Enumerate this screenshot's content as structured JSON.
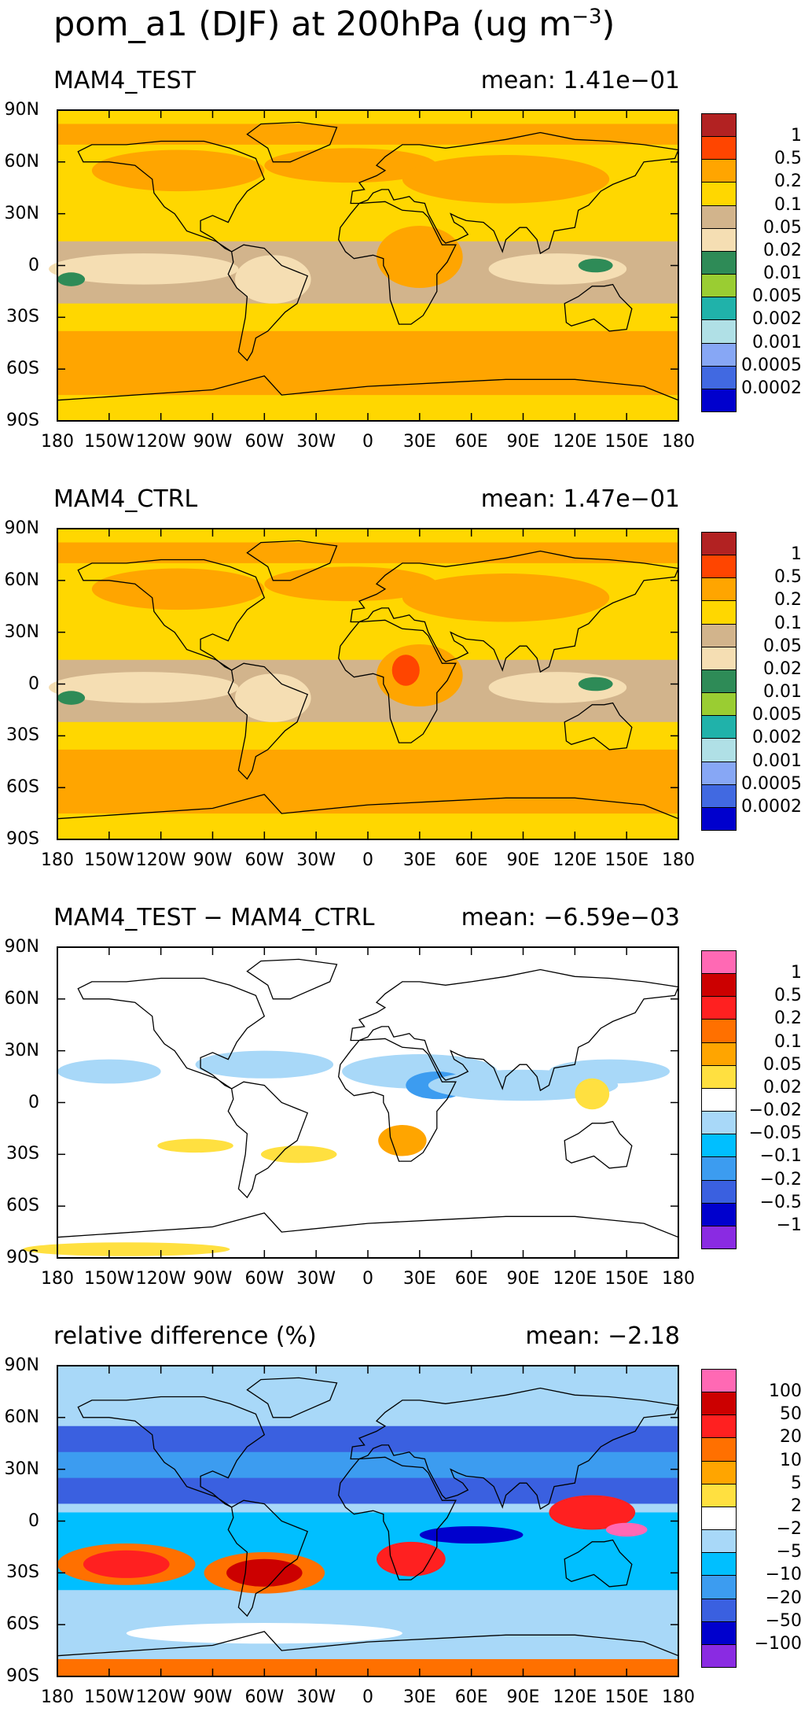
{
  "figure": {
    "title": "pom_a1 (DJF) at 200hPa (ug m",
    "title_superscript": "−3",
    "title_close": ")"
  },
  "axes": {
    "lat_labels": [
      "90N",
      "60N",
      "30N",
      "0",
      "30S",
      "60S",
      "90S"
    ],
    "lon_labels": [
      "180",
      "150W",
      "120W",
      "90W",
      "60W",
      "30W",
      "0",
      "30E",
      "60E",
      "90E",
      "120E",
      "150E",
      "180"
    ]
  },
  "panels": [
    {
      "name": "MAM4_TEST",
      "mean": "mean: 1.41e−01",
      "colorbar": {
        "colors": [
          "#b22222",
          "#ff4500",
          "#ffa500",
          "#ffd700",
          "#d2b48c",
          "#f5deb3",
          "#2e8b57",
          "#9acd32",
          "#20b2aa",
          "#b0e0e6",
          "#87a7f5",
          "#4169e1",
          "#0000cd"
        ],
        "labels": [
          "1",
          "0.5",
          "0.2",
          "0.1",
          "0.05",
          "0.02",
          "0.01",
          "0.005",
          "0.002",
          "0.001",
          "0.0005",
          "0.0002"
        ]
      }
    },
    {
      "name": "MAM4_CTRL",
      "mean": "mean: 1.47e−01",
      "colorbar": {
        "colors": [
          "#b22222",
          "#ff4500",
          "#ffa500",
          "#ffd700",
          "#d2b48c",
          "#f5deb3",
          "#2e8b57",
          "#9acd32",
          "#20b2aa",
          "#b0e0e6",
          "#87a7f5",
          "#4169e1",
          "#0000cd"
        ],
        "labels": [
          "1",
          "0.5",
          "0.2",
          "0.1",
          "0.05",
          "0.02",
          "0.01",
          "0.005",
          "0.002",
          "0.001",
          "0.0005",
          "0.0002"
        ]
      }
    },
    {
      "name": "MAM4_TEST − MAM4_CTRL",
      "mean": "mean: −6.59e−03",
      "colorbar": {
        "colors": [
          "#ff69b4",
          "#cc0000",
          "#ff2020",
          "#ff7000",
          "#ffa500",
          "#ffe040",
          "#ffffff",
          "#a8d8f8",
          "#00bfff",
          "#3c9cf0",
          "#3a60e0",
          "#0000cd",
          "#8a2be2"
        ],
        "labels": [
          "1",
          "0.5",
          "0.2",
          "0.1",
          "0.05",
          "0.02",
          "−0.02",
          "−0.05",
          "−0.1",
          "−0.2",
          "−0.5",
          "−1"
        ]
      }
    },
    {
      "name": "relative difference (%)",
      "mean": "mean: −2.18",
      "colorbar": {
        "colors": [
          "#ff69b4",
          "#cc0000",
          "#ff2020",
          "#ff7000",
          "#ffa500",
          "#ffe040",
          "#ffffff",
          "#a8d8f8",
          "#00bfff",
          "#3c9cf0",
          "#3a60e0",
          "#0000cd",
          "#8a2be2"
        ],
        "labels": [
          "100",
          "50",
          "20",
          "10",
          "5",
          "2",
          "−2",
          "−5",
          "−10",
          "−20",
          "−50",
          "−100"
        ]
      }
    }
  ]
}
